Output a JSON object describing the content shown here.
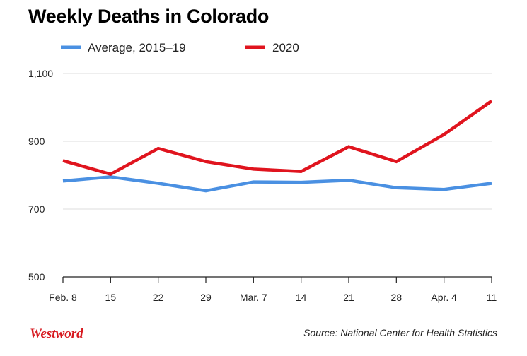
{
  "chart_data": {
    "type": "line",
    "title": "Weekly Deaths in Colorado",
    "categories": [
      "Feb. 8",
      "15",
      "22",
      "29",
      "Mar. 7",
      "14",
      "21",
      "28",
      "Apr. 4",
      "11"
    ],
    "series": [
      {
        "name": "Average, 2015–19",
        "color": "#4a90e2",
        "values": [
          783,
          795,
          776,
          754,
          780,
          779,
          785,
          763,
          758,
          776
        ]
      },
      {
        "name": "2020",
        "color": "#e0141e",
        "values": [
          843,
          803,
          879,
          840,
          818,
          811,
          884,
          840,
          920,
          1019
        ]
      }
    ],
    "yticks": [
      "500",
      "700",
      "900",
      "1,100"
    ],
    "ylim": [
      500,
      1100
    ],
    "grid": true,
    "legend": "top"
  },
  "footer": {
    "logo": "Westword",
    "source": "Source: National Center for Health Statistics"
  }
}
